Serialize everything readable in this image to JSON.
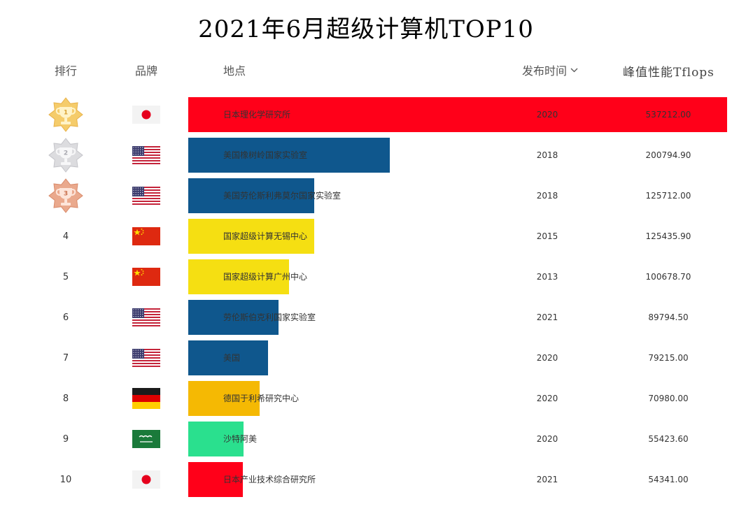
{
  "title": "2021年6月超级计算机TOP10",
  "headers": {
    "rank": "排行",
    "brand": "品牌",
    "location": "地点",
    "date": "发布时间",
    "performance": "峰值性能Tflops"
  },
  "sort_icon": "chevron-down-icon",
  "colors": {
    "japan": "#ff0019",
    "usa": "#0f578d",
    "china": "#f5df12",
    "germany": "#f5b903",
    "saudi": "#2ae08e"
  },
  "chart_data": {
    "type": "bar",
    "orientation": "horizontal",
    "title": "2021年6月超级计算机TOP10",
    "columns": [
      "排行",
      "品牌",
      "地点",
      "发布时间",
      "峰值性能Tflops"
    ],
    "xlim": [
      0,
      537212
    ],
    "rows": [
      {
        "rank": 1,
        "rank_label": "1",
        "medal": "gold-trophy-icon",
        "country": "japan",
        "flag": "japan-flag-icon",
        "location": "日本理化学研究所",
        "year": "2020",
        "performance": 537212.0,
        "performance_label": "537212.00",
        "color": "#ff0019"
      },
      {
        "rank": 2,
        "rank_label": "2",
        "medal": "silver-trophy-icon",
        "country": "usa",
        "flag": "usa-flag-icon",
        "location": "美国橡树岭国家实验室",
        "year": "2018",
        "performance": 200794.9,
        "performance_label": "200794.90",
        "color": "#0f578d"
      },
      {
        "rank": 3,
        "rank_label": "3",
        "medal": "bronze-trophy-icon",
        "country": "usa",
        "flag": "usa-flag-icon",
        "location": "美国劳伦斯利弗莫尔国家实验室",
        "year": "2018",
        "performance": 125712.0,
        "performance_label": "125712.00",
        "color": "#0f578d"
      },
      {
        "rank": 4,
        "rank_label": "4",
        "medal": "",
        "country": "china",
        "flag": "china-flag-icon",
        "location": "国家超级计算无锡中心",
        "year": "2015",
        "performance": 125435.9,
        "performance_label": "125435.90",
        "color": "#f5df12"
      },
      {
        "rank": 5,
        "rank_label": "5",
        "medal": "",
        "country": "china",
        "flag": "china-flag-icon",
        "location": "国家超级计算广州中心",
        "year": "2013",
        "performance": 100678.7,
        "performance_label": "100678.70",
        "color": "#f5df12"
      },
      {
        "rank": 6,
        "rank_label": "6",
        "medal": "",
        "country": "usa",
        "flag": "usa-flag-icon",
        "location": "劳伦斯伯克利国家实验室",
        "year": "2021",
        "performance": 89794.5,
        "performance_label": "89794.50",
        "color": "#0f578d"
      },
      {
        "rank": 7,
        "rank_label": "7",
        "medal": "",
        "country": "usa",
        "flag": "usa-flag-icon",
        "location": "美国",
        "year": "2020",
        "performance": 79215.0,
        "performance_label": "79215.00",
        "color": "#0f578d"
      },
      {
        "rank": 8,
        "rank_label": "8",
        "medal": "",
        "country": "germany",
        "flag": "germany-flag-icon",
        "location": "德国于利希研究中心",
        "year": "2020",
        "performance": 70980.0,
        "performance_label": "70980.00",
        "color": "#f5b903"
      },
      {
        "rank": 9,
        "rank_label": "9",
        "medal": "",
        "country": "saudi",
        "flag": "saudi-flag-icon",
        "location": "沙特阿美",
        "year": "2020",
        "performance": 55423.6,
        "performance_label": "55423.60",
        "color": "#2ae08e"
      },
      {
        "rank": 10,
        "rank_label": "10",
        "medal": "",
        "country": "japan",
        "flag": "japan-flag-icon",
        "location": "日本产业技术综合研究所",
        "year": "2021",
        "performance": 54341.0,
        "performance_label": "54341.00",
        "color": "#ff0019"
      }
    ]
  }
}
